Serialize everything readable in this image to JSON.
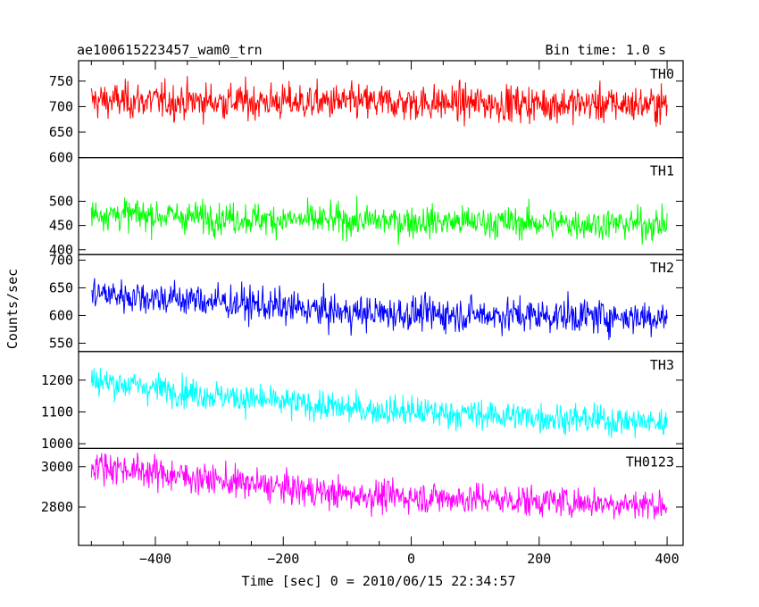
{
  "header": {
    "title": "ae100615223457_wam0_trn",
    "bin_time": "Bin time: 1.0 s"
  },
  "chart_data": {
    "type": "line",
    "title": "ae100615223457_wam0_trn",
    "xlabel": "Time [sec] 0 = 2010/06/15 22:34:57",
    "ylabel": "Counts/sec",
    "xlim": [
      -520,
      425
    ],
    "x_range": [
      -500,
      400
    ],
    "x_ticks": [
      -400,
      -200,
      0,
      200,
      400
    ],
    "x_tick_labels": [
      "−400",
      "−200",
      "0",
      "200",
      "400"
    ],
    "panels": [
      {
        "name": "TH0",
        "color": "#ff0000",
        "ylim": [
          600,
          790
        ],
        "y_ticks": [
          600,
          650,
          700,
          750
        ],
        "y_tick_labels": [
          "600",
          "650",
          "700",
          "750"
        ],
        "trend": [
          [
            -500,
            712
          ],
          [
            400,
            704
          ]
        ],
        "noise": 55
      },
      {
        "name": "TH1",
        "color": "#00ff00",
        "ylim": [
          390,
          590
        ],
        "y_ticks": [
          400,
          450,
          500
        ],
        "y_tick_labels": [
          "400",
          "450",
          "500"
        ],
        "trend": [
          [
            -500,
            475
          ],
          [
            -200,
            462
          ],
          [
            400,
            452
          ]
        ],
        "noise": 50
      },
      {
        "name": "TH2",
        "color": "#0000ff",
        "ylim": [
          535,
          710
        ],
        "y_ticks": [
          550,
          600,
          650,
          700
        ],
        "y_tick_labels": [
          "550",
          "600",
          "650",
          "700"
        ],
        "trend": [
          [
            -500,
            640
          ],
          [
            -300,
            625
          ],
          [
            -100,
            605
          ],
          [
            400,
            597
          ]
        ],
        "noise": 48
      },
      {
        "name": "TH3",
        "color": "#00ffff",
        "ylim": [
          985,
          1290
        ],
        "y_ticks": [
          1000,
          1100,
          1200
        ],
        "y_tick_labels": [
          "1000",
          "1100",
          "1200"
        ],
        "trend": [
          [
            -500,
            1200
          ],
          [
            -300,
            1150
          ],
          [
            -100,
            1110
          ],
          [
            400,
            1065
          ]
        ],
        "noise": 72
      },
      {
        "name": "TH0123",
        "color": "#ff00ff",
        "ylim": [
          2610,
          3090
        ],
        "y_ticks": [
          2800,
          3000
        ],
        "y_tick_labels": [
          "2800",
          "3000"
        ],
        "trend": [
          [
            -500,
            3010
          ],
          [
            -300,
            2930
          ],
          [
            -100,
            2860
          ],
          [
            400,
            2810
          ]
        ],
        "noise": 120
      }
    ]
  }
}
